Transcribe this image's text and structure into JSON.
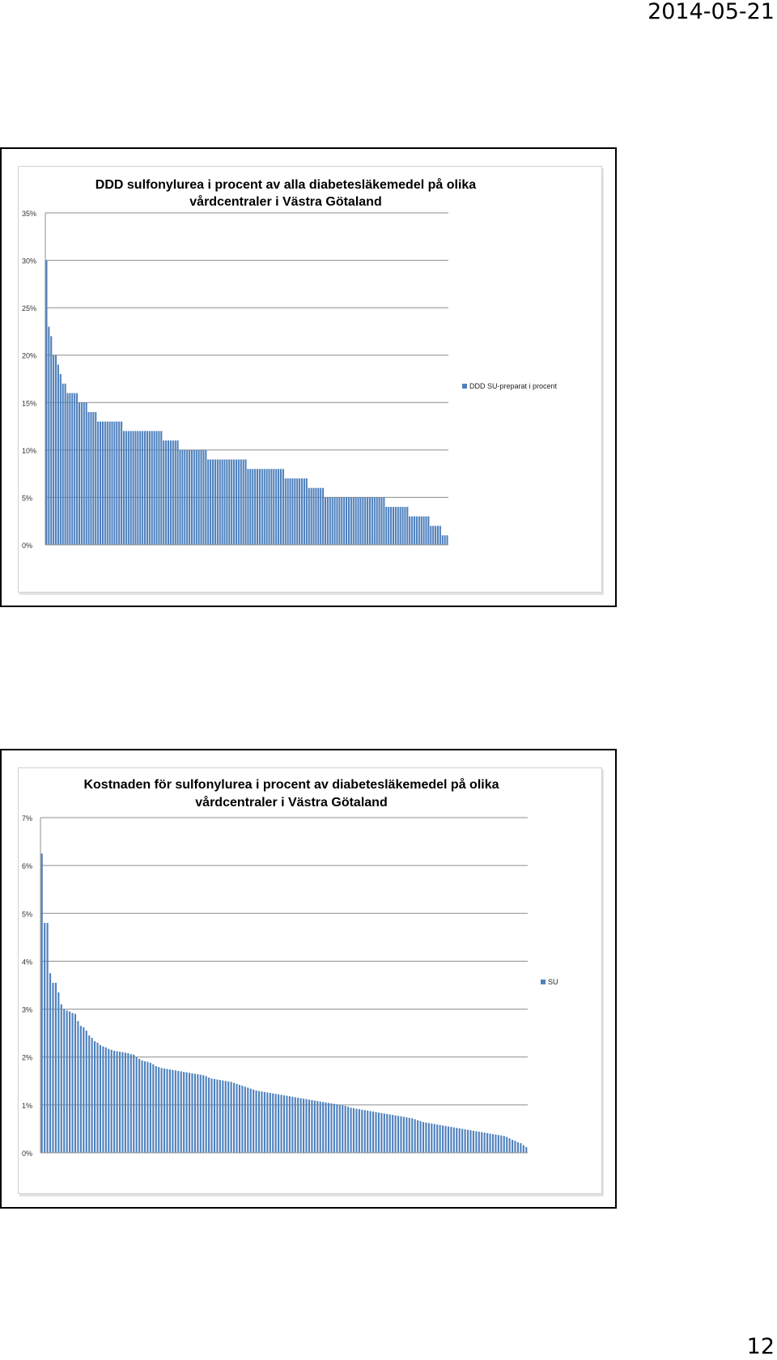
{
  "header": {
    "date": "2014-05-21"
  },
  "footer": {
    "page_number": "12"
  },
  "chart_data": [
    {
      "type": "bar",
      "title": "DDD sulfonylurea i procent av alla diabetesläkemedel på olika vårdcentraler i Västra Götaland",
      "title_lines": [
        "DDD sulfonylurea i procent av alla diabetesläkemedel på olika",
        "vårdcentraler i Västra Götaland"
      ],
      "ylim": [
        0,
        35
      ],
      "yticks": [
        0,
        5,
        10,
        15,
        20,
        25,
        30,
        35
      ],
      "ytick_labels": [
        "0%",
        "5%",
        "10%",
        "15%",
        "20%",
        "25%",
        "30%",
        "35%"
      ],
      "grid": true,
      "legend": "right",
      "series": [
        {
          "name": "DDD SU-preparat i procent",
          "color": "#4f81bd",
          "values": [
            30,
            23,
            22,
            20,
            20,
            19,
            18,
            17,
            17,
            16,
            16,
            16,
            16,
            16,
            15,
            15,
            15,
            15,
            14,
            14,
            14,
            14,
            13,
            13,
            13,
            13,
            13,
            13,
            13,
            13,
            13,
            13,
            13,
            12,
            12,
            12,
            12,
            12,
            12,
            12,
            12,
            12,
            12,
            12,
            12,
            12,
            12,
            12,
            12,
            12,
            11,
            11,
            11,
            11,
            11,
            11,
            11,
            10,
            10,
            10,
            10,
            10,
            10,
            10,
            10,
            10,
            10,
            10,
            10,
            9,
            9,
            9,
            9,
            9,
            9,
            9,
            9,
            9,
            9,
            9,
            9,
            9,
            9,
            9,
            9,
            9,
            8,
            8,
            8,
            8,
            8,
            8,
            8,
            8,
            8,
            8,
            8,
            8,
            8,
            8,
            8,
            8,
            7,
            7,
            7,
            7,
            7,
            7,
            7,
            7,
            7,
            7,
            6,
            6,
            6,
            6,
            6,
            6,
            6,
            5,
            5,
            5,
            5,
            5,
            5,
            5,
            5,
            5,
            5,
            5,
            5,
            5,
            5,
            5,
            5,
            5,
            5,
            5,
            5,
            5,
            5,
            5,
            5,
            5,
            5,
            4,
            4,
            4,
            4,
            4,
            4,
            4,
            4,
            4,
            4,
            3,
            3,
            3,
            3,
            3,
            3,
            3,
            3,
            3,
            2,
            2,
            2,
            2,
            2,
            1,
            1,
            1
          ]
        }
      ]
    },
    {
      "type": "bar",
      "title": "Kostnaden för sulfonylurea i procent av diabetesläkemedel på olika vårdcentraler i Västra Götaland",
      "title_lines": [
        "Kostnaden för sulfonylurea i procent av diabetesläkemedel på olika",
        "vårdcentraler i Västra Götaland"
      ],
      "ylim": [
        0,
        7
      ],
      "yticks": [
        0,
        1,
        2,
        3,
        4,
        5,
        6,
        7
      ],
      "ytick_labels": [
        "0%",
        "1%",
        "2%",
        "3%",
        "4%",
        "5%",
        "6%",
        "7%"
      ],
      "grid": true,
      "legend": "right",
      "series": [
        {
          "name": "SU",
          "color": "#4f81bd",
          "values": [
            6.25,
            4.8,
            4.8,
            3.75,
            3.55,
            3.55,
            3.35,
            3.1,
            3.0,
            2.97,
            2.95,
            2.92,
            2.9,
            2.75,
            2.65,
            2.62,
            2.55,
            2.45,
            2.4,
            2.33,
            2.3,
            2.25,
            2.22,
            2.2,
            2.17,
            2.15,
            2.13,
            2.12,
            2.11,
            2.1,
            2.09,
            2.08,
            2.06,
            2.05,
            2.0,
            1.96,
            1.93,
            1.91,
            1.9,
            1.88,
            1.85,
            1.81,
            1.79,
            1.77,
            1.76,
            1.75,
            1.74,
            1.73,
            1.72,
            1.71,
            1.7,
            1.69,
            1.68,
            1.67,
            1.66,
            1.65,
            1.64,
            1.63,
            1.62,
            1.6,
            1.57,
            1.55,
            1.54,
            1.53,
            1.52,
            1.51,
            1.5,
            1.49,
            1.48,
            1.46,
            1.44,
            1.42,
            1.4,
            1.38,
            1.36,
            1.34,
            1.32,
            1.3,
            1.29,
            1.28,
            1.27,
            1.26,
            1.25,
            1.24,
            1.23,
            1.22,
            1.21,
            1.2,
            1.19,
            1.18,
            1.17,
            1.16,
            1.15,
            1.14,
            1.13,
            1.12,
            1.11,
            1.1,
            1.09,
            1.08,
            1.07,
            1.06,
            1.05,
            1.04,
            1.03,
            1.02,
            1.01,
            1.0,
            0.99,
            0.98,
            0.96,
            0.94,
            0.93,
            0.92,
            0.91,
            0.9,
            0.89,
            0.88,
            0.87,
            0.86,
            0.85,
            0.84,
            0.83,
            0.82,
            0.81,
            0.8,
            0.79,
            0.78,
            0.77,
            0.76,
            0.75,
            0.74,
            0.73,
            0.72,
            0.7,
            0.68,
            0.66,
            0.64,
            0.63,
            0.62,
            0.61,
            0.6,
            0.59,
            0.58,
            0.57,
            0.56,
            0.55,
            0.54,
            0.53,
            0.52,
            0.51,
            0.5,
            0.49,
            0.48,
            0.47,
            0.46,
            0.45,
            0.44,
            0.43,
            0.42,
            0.41,
            0.4,
            0.39,
            0.38,
            0.37,
            0.36,
            0.35,
            0.33,
            0.3,
            0.27,
            0.25,
            0.22,
            0.2,
            0.16,
            0.12
          ]
        }
      ]
    }
  ]
}
